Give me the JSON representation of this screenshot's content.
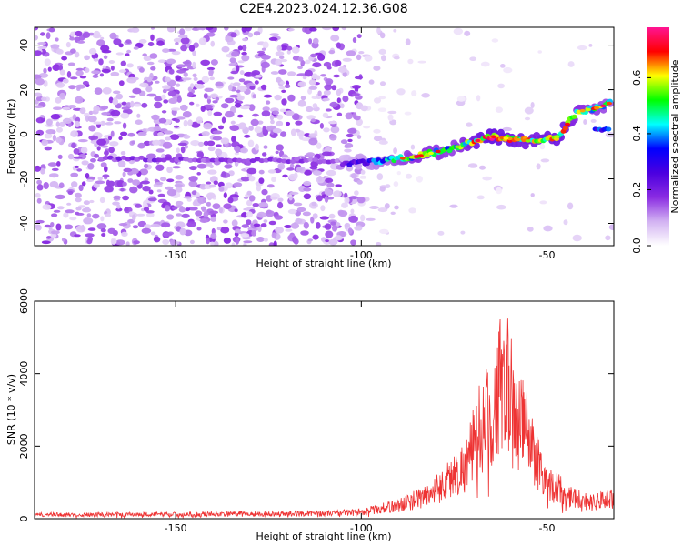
{
  "title": "C2E4.2023.024.12.36.G08",
  "chart_data": [
    {
      "type": "heatmap",
      "xlabel": "Height of straight line (km)",
      "ylabel": "Frequency (Hz)",
      "xlim": [
        -188,
        -32
      ],
      "ylim": [
        -50,
        48
      ],
      "xticks": [
        -150,
        -100,
        -50
      ],
      "yticks": [
        -40,
        -20,
        0,
        20,
        40
      ],
      "colorbar": {
        "label": "Normalized spectral amplitude",
        "range": [
          0,
          0.78
        ],
        "ticks": [
          0.0,
          0.2,
          0.4,
          0.6
        ],
        "colors": [
          "#ffffff",
          "#d2b2f2",
          "#8a2be2",
          "#4b00e0",
          "#0000ff",
          "#00ffff",
          "#00ff00",
          "#ffff00",
          "#ff0000",
          "#ff1493"
        ]
      },
      "ridge": {
        "x": [
          -105,
          -95,
          -85,
          -75,
          -65,
          -55,
          -47,
          -42,
          -36,
          -33
        ],
        "y": [
          -13,
          -12,
          -10,
          -6,
          -1,
          -3,
          -1,
          10,
          12,
          14
        ],
        "amplitude": [
          0.22,
          0.35,
          0.5,
          0.45,
          0.65,
          0.55,
          0.6,
          0.5,
          0.45,
          0.4
        ]
      },
      "secondary_ridge": {
        "x": [
          -37,
          -33
        ],
        "y": [
          2,
          2
        ],
        "amplitude": [
          0.3,
          0.3
        ]
      },
      "left_line": {
        "x": [
          -170,
          -100
        ],
        "y": [
          -11,
          -12
        ],
        "amplitude": [
          0.2,
          0.18
        ]
      }
    },
    {
      "type": "line",
      "xlabel": "Height of straight line (km)",
      "ylabel": "SNR (10 * v/v)",
      "xlim": [
        -188,
        -32
      ],
      "ylim": [
        0,
        6000
      ],
      "xticks": [
        -150,
        -100,
        -50
      ],
      "yticks": [
        0,
        2000,
        4000,
        6000
      ],
      "color": "#ee3333",
      "envelope": {
        "x": [
          -188,
          -150,
          -110,
          -100,
          -90,
          -82,
          -78,
          -72,
          -68,
          -64,
          -62,
          -61.5,
          -60,
          -58,
          -56,
          -54,
          -50,
          -44,
          -38,
          -32
        ],
        "y": [
          150,
          170,
          200,
          260,
          500,
          900,
          1300,
          2000,
          3500,
          4200,
          5500,
          5900,
          4800,
          3500,
          3600,
          2700,
          1400,
          900,
          600,
          800
        ]
      }
    }
  ]
}
